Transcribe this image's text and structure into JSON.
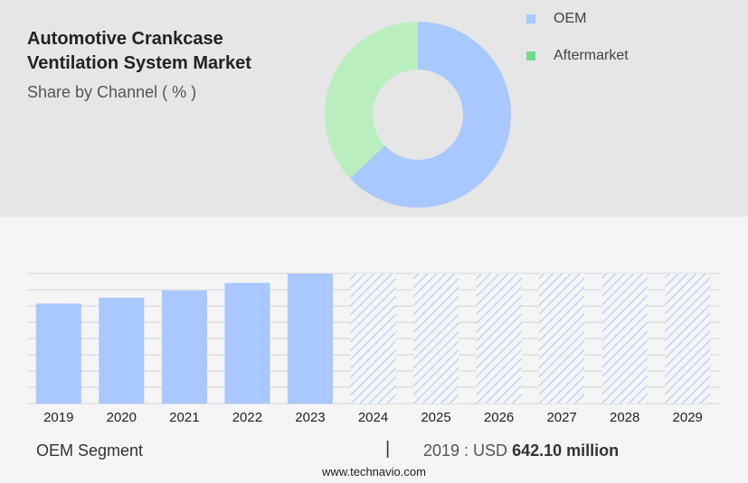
{
  "header": {
    "title": "Automotive Crankcase Ventilation System Market",
    "subtitle": "Share by Channel ( % )"
  },
  "legend": [
    {
      "label": "OEM",
      "color": "#a8c8ff"
    },
    {
      "label": "Aftermarket",
      "color": "#6fdc8c"
    }
  ],
  "footer": {
    "segment": "OEM Segment",
    "separator": "|",
    "value_prefix": "2019 : USD",
    "value": "642.10 million",
    "url": "www.technavio.com"
  },
  "chart_data": [
    {
      "type": "pie",
      "title": "",
      "series": [
        {
          "name": "OEM",
          "value": 63,
          "color": "#a8c8ff"
        },
        {
          "name": "Aftermarket",
          "value": 37,
          "color": "#b9efbf"
        }
      ]
    },
    {
      "type": "bar",
      "title": "",
      "categories": [
        "2019",
        "2020",
        "2021",
        "2022",
        "2023",
        "2024",
        "2025",
        "2026",
        "2027",
        "2028",
        "2029"
      ],
      "values": [
        642.1,
        680,
        726,
        775,
        835,
        null,
        null,
        null,
        null,
        null,
        null
      ],
      "forecast": [
        false,
        false,
        false,
        false,
        false,
        true,
        true,
        true,
        true,
        true,
        true
      ],
      "ylim": [
        0,
        835
      ],
      "grid": true,
      "bar_color": "#a8c8ff",
      "forecast_hatch_color": "#a8c8ff"
    }
  ]
}
